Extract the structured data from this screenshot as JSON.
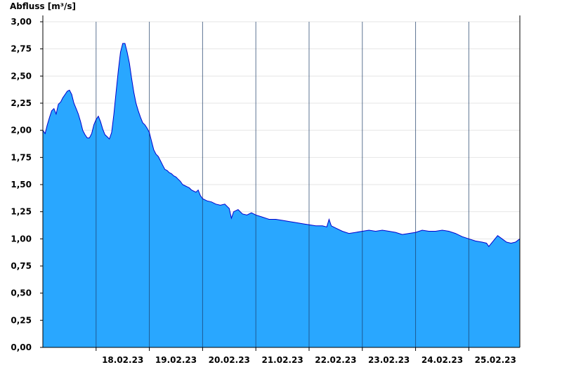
{
  "chart_data": {
    "type": "area",
    "ylabel": "Abfluss [m³/s]",
    "ylim": [
      0,
      3.0
    ],
    "xlim": [
      "2023-02-17T00:00",
      "2023-02-25T23:00"
    ],
    "yticks": [
      {
        "value": 0.0,
        "label": "0,00"
      },
      {
        "value": 0.25,
        "label": "0,25"
      },
      {
        "value": 0.5,
        "label": "0,50"
      },
      {
        "value": 0.75,
        "label": "0,75"
      },
      {
        "value": 1.0,
        "label": "1,00"
      },
      {
        "value": 1.25,
        "label": "1,25"
      },
      {
        "value": 1.5,
        "label": "1,50"
      },
      {
        "value": 1.75,
        "label": "1,75"
      },
      {
        "value": 2.0,
        "label": "2,00"
      },
      {
        "value": 2.25,
        "label": "2,25"
      },
      {
        "value": 2.5,
        "label": "2,50"
      },
      {
        "value": 2.75,
        "label": "2,75"
      },
      {
        "value": 3.0,
        "label": "3,00"
      }
    ],
    "day_separators": [
      "2023-02-18T00:00",
      "2023-02-19T00:00",
      "2023-02-20T00:00",
      "2023-02-21T00:00",
      "2023-02-22T00:00",
      "2023-02-23T00:00",
      "2023-02-24T00:00",
      "2023-02-25T00:00"
    ],
    "xticks": [
      {
        "date": "2023-02-18T12:00",
        "label": "18.02.23"
      },
      {
        "date": "2023-02-19T12:00",
        "label": "19.02.23"
      },
      {
        "date": "2023-02-20T12:00",
        "label": "20.02.23"
      },
      {
        "date": "2023-02-21T12:00",
        "label": "21.02.23"
      },
      {
        "date": "2023-02-22T12:00",
        "label": "22.02.23"
      },
      {
        "date": "2023-02-23T12:00",
        "label": "23.02.23"
      },
      {
        "date": "2023-02-24T12:00",
        "label": "24.02.23"
      },
      {
        "date": "2023-02-25T12:00",
        "label": "25.02.23"
      }
    ],
    "grid": "horizontal",
    "series": [
      {
        "fill_color": "#29a7ff",
        "line_color": "#0000cc",
        "points": [
          [
            "2023-02-17T00:00",
            2.0
          ],
          [
            "2023-02-17T01:00",
            1.97
          ],
          [
            "2023-02-17T02:00",
            2.05
          ],
          [
            "2023-02-17T03:00",
            2.12
          ],
          [
            "2023-02-17T04:00",
            2.18
          ],
          [
            "2023-02-17T05:00",
            2.2
          ],
          [
            "2023-02-17T06:00",
            2.15
          ],
          [
            "2023-02-17T07:00",
            2.24
          ],
          [
            "2023-02-17T08:00",
            2.26
          ],
          [
            "2023-02-17T09:00",
            2.3
          ],
          [
            "2023-02-17T10:00",
            2.33
          ],
          [
            "2023-02-17T11:00",
            2.36
          ],
          [
            "2023-02-17T12:00",
            2.37
          ],
          [
            "2023-02-17T13:00",
            2.33
          ],
          [
            "2023-02-17T14:00",
            2.25
          ],
          [
            "2023-02-17T15:00",
            2.2
          ],
          [
            "2023-02-17T16:00",
            2.15
          ],
          [
            "2023-02-17T17:00",
            2.08
          ],
          [
            "2023-02-17T18:00",
            2.0
          ],
          [
            "2023-02-17T19:00",
            1.96
          ],
          [
            "2023-02-17T20:00",
            1.93
          ],
          [
            "2023-02-17T21:00",
            1.93
          ],
          [
            "2023-02-17T22:00",
            1.97
          ],
          [
            "2023-02-17T23:00",
            2.05
          ],
          [
            "2023-02-18T00:00",
            2.1
          ],
          [
            "2023-02-18T01:00",
            2.13
          ],
          [
            "2023-02-18T02:00",
            2.08
          ],
          [
            "2023-02-18T03:00",
            2.01
          ],
          [
            "2023-02-18T04:00",
            1.96
          ],
          [
            "2023-02-18T05:00",
            1.94
          ],
          [
            "2023-02-18T06:00",
            1.92
          ],
          [
            "2023-02-18T07:00",
            1.98
          ],
          [
            "2023-02-18T08:00",
            2.15
          ],
          [
            "2023-02-18T09:00",
            2.35
          ],
          [
            "2023-02-18T10:00",
            2.55
          ],
          [
            "2023-02-18T11:00",
            2.72
          ],
          [
            "2023-02-18T12:00",
            2.8
          ],
          [
            "2023-02-18T13:00",
            2.8
          ],
          [
            "2023-02-18T14:00",
            2.72
          ],
          [
            "2023-02-18T15:00",
            2.62
          ],
          [
            "2023-02-18T16:00",
            2.48
          ],
          [
            "2023-02-18T17:00",
            2.35
          ],
          [
            "2023-02-18T18:00",
            2.25
          ],
          [
            "2023-02-18T19:00",
            2.18
          ],
          [
            "2023-02-18T20:00",
            2.12
          ],
          [
            "2023-02-18T21:00",
            2.07
          ],
          [
            "2023-02-18T22:00",
            2.05
          ],
          [
            "2023-02-18T23:00",
            2.02
          ],
          [
            "2023-02-19T00:00",
            1.98
          ],
          [
            "2023-02-19T01:00",
            1.9
          ],
          [
            "2023-02-19T02:00",
            1.82
          ],
          [
            "2023-02-19T03:00",
            1.78
          ],
          [
            "2023-02-19T04:00",
            1.76
          ],
          [
            "2023-02-19T05:00",
            1.72
          ],
          [
            "2023-02-19T06:00",
            1.68
          ],
          [
            "2023-02-19T07:00",
            1.64
          ],
          [
            "2023-02-19T08:00",
            1.63
          ],
          [
            "2023-02-19T09:00",
            1.61
          ],
          [
            "2023-02-19T10:00",
            1.6
          ],
          [
            "2023-02-19T11:00",
            1.58
          ],
          [
            "2023-02-19T12:00",
            1.57
          ],
          [
            "2023-02-19T13:00",
            1.55
          ],
          [
            "2023-02-19T14:00",
            1.53
          ],
          [
            "2023-02-19T15:00",
            1.5
          ],
          [
            "2023-02-19T16:00",
            1.49
          ],
          [
            "2023-02-19T17:00",
            1.48
          ],
          [
            "2023-02-19T18:00",
            1.47
          ],
          [
            "2023-02-19T19:00",
            1.45
          ],
          [
            "2023-02-19T20:00",
            1.44
          ],
          [
            "2023-02-19T21:00",
            1.43
          ],
          [
            "2023-02-19T22:00",
            1.45
          ],
          [
            "2023-02-19T23:00",
            1.4
          ],
          [
            "2023-02-20T00:00",
            1.37
          ],
          [
            "2023-02-20T02:00",
            1.35
          ],
          [
            "2023-02-20T04:00",
            1.34
          ],
          [
            "2023-02-20T06:00",
            1.32
          ],
          [
            "2023-02-20T08:00",
            1.31
          ],
          [
            "2023-02-20T10:00",
            1.32
          ],
          [
            "2023-02-20T12:00",
            1.28
          ],
          [
            "2023-02-20T13:00",
            1.19
          ],
          [
            "2023-02-20T14:00",
            1.25
          ],
          [
            "2023-02-20T16:00",
            1.27
          ],
          [
            "2023-02-20T18:00",
            1.23
          ],
          [
            "2023-02-20T20:00",
            1.22
          ],
          [
            "2023-02-20T22:00",
            1.24
          ],
          [
            "2023-02-21T00:00",
            1.22
          ],
          [
            "2023-02-21T03:00",
            1.2
          ],
          [
            "2023-02-21T06:00",
            1.18
          ],
          [
            "2023-02-21T09:00",
            1.18
          ],
          [
            "2023-02-21T12:00",
            1.17
          ],
          [
            "2023-02-21T15:00",
            1.16
          ],
          [
            "2023-02-21T18:00",
            1.15
          ],
          [
            "2023-02-21T21:00",
            1.14
          ],
          [
            "2023-02-22T00:00",
            1.13
          ],
          [
            "2023-02-22T03:00",
            1.12
          ],
          [
            "2023-02-22T06:00",
            1.12
          ],
          [
            "2023-02-22T08:00",
            1.11
          ],
          [
            "2023-02-22T09:00",
            1.18
          ],
          [
            "2023-02-22T10:00",
            1.12
          ],
          [
            "2023-02-22T12:00",
            1.1
          ],
          [
            "2023-02-22T15:00",
            1.07
          ],
          [
            "2023-02-22T18:00",
            1.05
          ],
          [
            "2023-02-22T21:00",
            1.06
          ],
          [
            "2023-02-23T00:00",
            1.07
          ],
          [
            "2023-02-23T03:00",
            1.08
          ],
          [
            "2023-02-23T06:00",
            1.07
          ],
          [
            "2023-02-23T09:00",
            1.08
          ],
          [
            "2023-02-23T12:00",
            1.07
          ],
          [
            "2023-02-23T15:00",
            1.06
          ],
          [
            "2023-02-23T18:00",
            1.04
          ],
          [
            "2023-02-23T21:00",
            1.05
          ],
          [
            "2023-02-24T00:00",
            1.06
          ],
          [
            "2023-02-24T03:00",
            1.08
          ],
          [
            "2023-02-24T06:00",
            1.07
          ],
          [
            "2023-02-24T09:00",
            1.07
          ],
          [
            "2023-02-24T12:00",
            1.08
          ],
          [
            "2023-02-24T15:00",
            1.07
          ],
          [
            "2023-02-24T18:00",
            1.05
          ],
          [
            "2023-02-24T21:00",
            1.02
          ],
          [
            "2023-02-25T00:00",
            1.0
          ],
          [
            "2023-02-25T03:00",
            0.98
          ],
          [
            "2023-02-25T06:00",
            0.97
          ],
          [
            "2023-02-25T08:00",
            0.96
          ],
          [
            "2023-02-25T09:00",
            0.93
          ],
          [
            "2023-02-25T11:00",
            0.98
          ],
          [
            "2023-02-25T13:00",
            1.03
          ],
          [
            "2023-02-25T15:00",
            1.0
          ],
          [
            "2023-02-25T17:00",
            0.97
          ],
          [
            "2023-02-25T19:00",
            0.96
          ],
          [
            "2023-02-25T21:00",
            0.97
          ],
          [
            "2023-02-25T23:00",
            1.0
          ]
        ]
      }
    ]
  }
}
